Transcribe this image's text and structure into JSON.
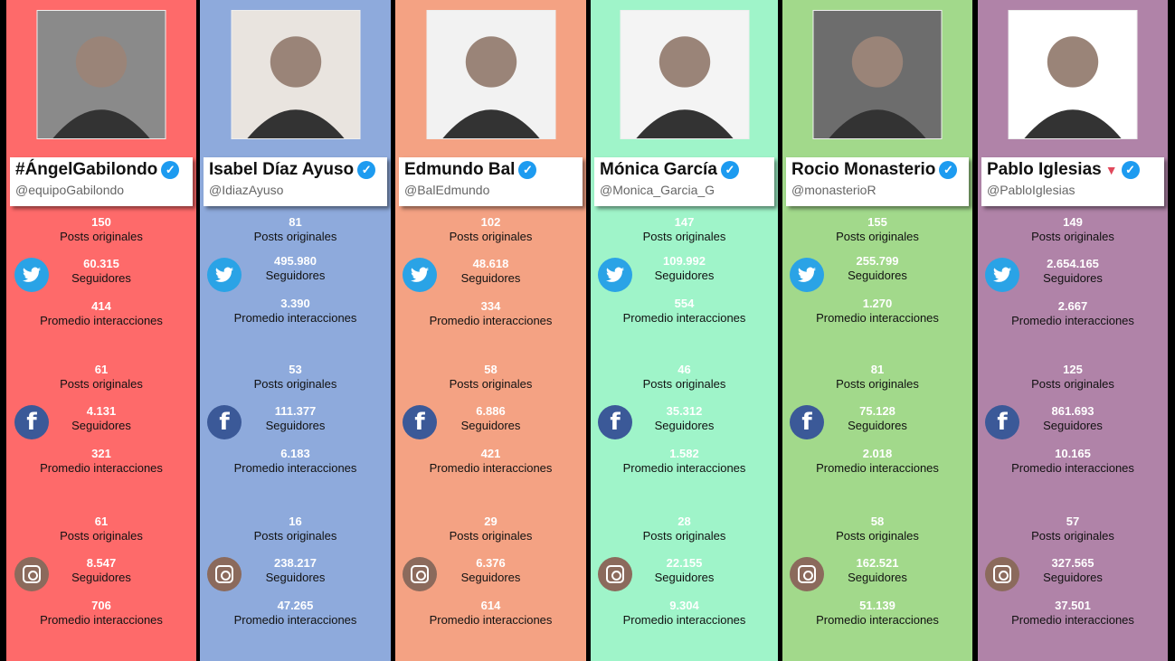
{
  "labels": {
    "posts": "Posts originales",
    "followers": "Seguidores",
    "interactions": "Promedio interacciones"
  },
  "candidates": [
    {
      "name": "#ÁngelGabilondo",
      "handle": "@equipoGabilondo",
      "color": "#fe6a6a",
      "photo_bg": "#8a8a8a",
      "twitter": {
        "posts": "150",
        "followers": "60.315",
        "interactions": "414"
      },
      "facebook": {
        "posts": "61",
        "followers": "4.131",
        "interactions": "321"
      },
      "instagram": {
        "posts": "61",
        "followers": "8.547",
        "interactions": "706"
      }
    },
    {
      "name": "Isabel Díaz Ayuso",
      "handle": "@IdiazAyuso",
      "color": "#8eaadc",
      "photo_bg": "#e9e4df",
      "twitter": {
        "posts": "81",
        "followers": "495.980",
        "interactions": "3.390"
      },
      "facebook": {
        "posts": "53",
        "followers": "111.377",
        "interactions": "6.183"
      },
      "instagram": {
        "posts": "16",
        "followers": "238.217",
        "interactions": "47.265"
      }
    },
    {
      "name": "Edmundo Bal",
      "handle": "@BalEdmundo",
      "color": "#f4a283",
      "photo_bg": "#f2f2f2",
      "twitter": {
        "posts": "102",
        "followers": "48.618",
        "interactions": "334"
      },
      "facebook": {
        "posts": "58",
        "followers": "6.886",
        "interactions": "421"
      },
      "instagram": {
        "posts": "29",
        "followers": "6.376",
        "interactions": "614"
      }
    },
    {
      "name": "Mónica García",
      "handle": "@Monica_Garcia_G",
      "color": "#9ff4c9",
      "photo_bg": "#f4f4f4",
      "twitter": {
        "posts": "147",
        "followers": "109.992",
        "interactions": "554"
      },
      "facebook": {
        "posts": "46",
        "followers": "35.312",
        "interactions": "1.582"
      },
      "instagram": {
        "posts": "28",
        "followers": "22.155",
        "interactions": "9.304"
      }
    },
    {
      "name": "Rocio Monasterio",
      "handle": "@monasterioR",
      "color": "#a2d98b",
      "photo_bg": "#6d6d6d",
      "twitter": {
        "posts": "155",
        "followers": "255.799",
        "interactions": "1.270"
      },
      "facebook": {
        "posts": "81",
        "followers": "75.128",
        "interactions": "2.018"
      },
      "instagram": {
        "posts": "58",
        "followers": "162.521",
        "interactions": "51.139"
      }
    },
    {
      "name": "Pablo Iglesias",
      "handle": "@PabloIglesias",
      "color": "#b083a8",
      "photo_bg": "#ffffff",
      "marker": "▼",
      "twitter": {
        "posts": "149",
        "followers": "2.654.165",
        "interactions": "2.667"
      },
      "facebook": {
        "posts": "125",
        "followers": "861.693",
        "interactions": "10.165"
      },
      "instagram": {
        "posts": "57",
        "followers": "327.565",
        "interactions": "37.501"
      }
    }
  ]
}
